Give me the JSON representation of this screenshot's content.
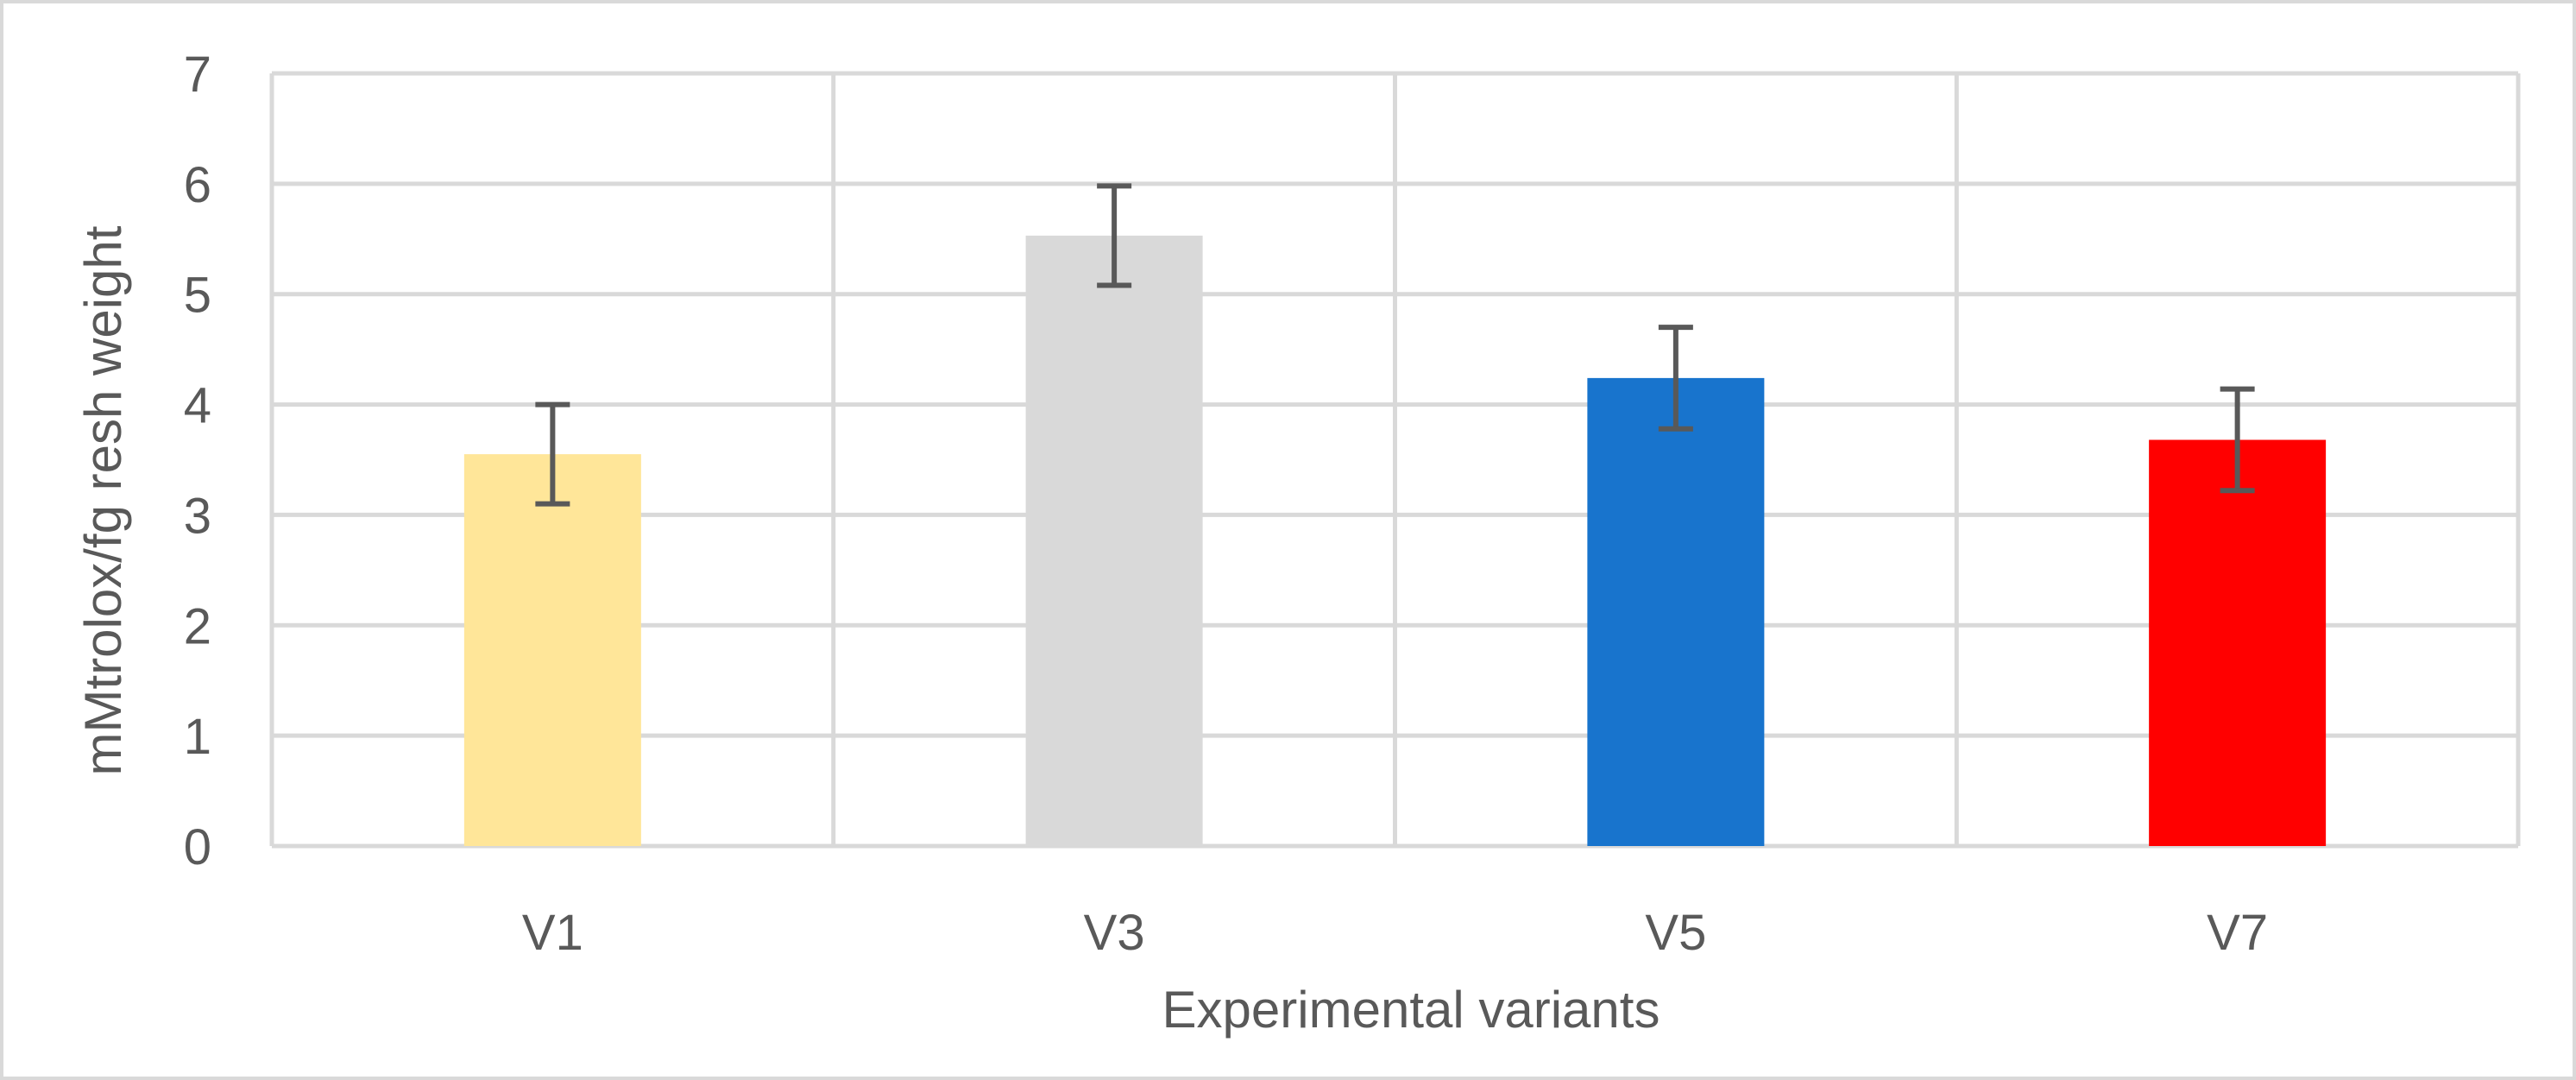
{
  "chart_data": {
    "type": "bar",
    "title": "",
    "xlabel": "Experimental variants",
    "ylabel": "mMtrolox/fg resh weight",
    "categories": [
      "V1",
      "V3",
      "V5",
      "V7"
    ],
    "values": [
      3.55,
      5.53,
      4.24,
      3.68
    ],
    "error": [
      0.45,
      0.45,
      0.46,
      0.46
    ],
    "colors": [
      "#FFE699",
      "#D9D9D9",
      "#1874CD",
      "#FF0000"
    ],
    "ylim": [
      0,
      7
    ],
    "yticks": [
      "0",
      "1",
      "2",
      "3",
      "4",
      "5",
      "6",
      "7"
    ],
    "grid": true,
    "legend": "none",
    "gridline_color": "#D9D9D9",
    "error_bar_color": "#595959"
  }
}
